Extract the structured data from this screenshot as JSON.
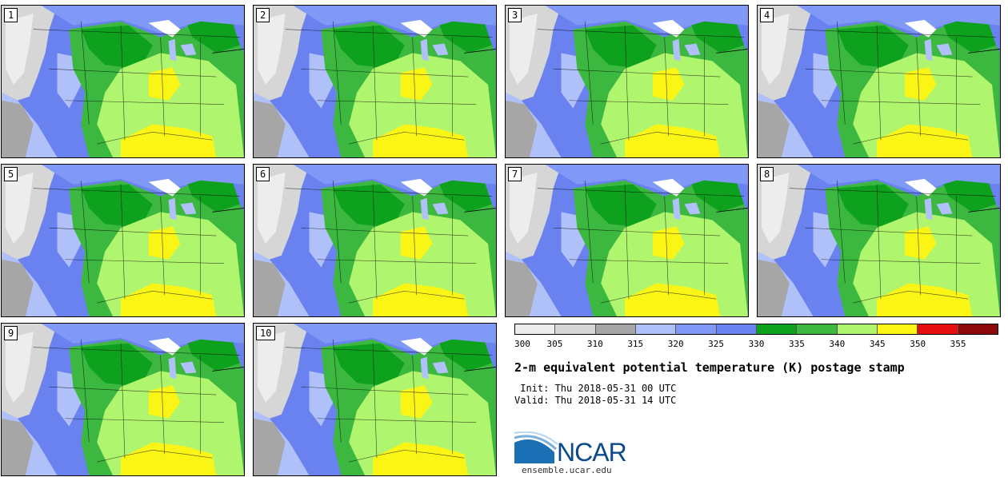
{
  "panels": [
    {
      "label": "1"
    },
    {
      "label": "2"
    },
    {
      "label": "3"
    },
    {
      "label": "4"
    },
    {
      "label": "5"
    },
    {
      "label": "6"
    },
    {
      "label": "7"
    },
    {
      "label": "8"
    },
    {
      "label": "9"
    },
    {
      "label": "10"
    }
  ],
  "colorbar": {
    "colors": [
      "#ededed",
      "#d6d6d6",
      "#a6a6a6",
      "#b0c1fa",
      "#8099f7",
      "#6a82f0",
      "#0da11e",
      "#3cb840",
      "#b0f56e",
      "#fbf515",
      "#e60f0f",
      "#8c0a0a"
    ],
    "ticks": [
      "300",
      "305",
      "310",
      "315",
      "320",
      "325",
      "330",
      "335",
      "340",
      "345",
      "350",
      "355"
    ]
  },
  "title": "2-m equivalent potential temperature (K) postage stamp",
  "init": " Init: Thu 2018-05-31 00 UTC",
  "valid": "Valid: Thu 2018-05-31 14 UTC",
  "logo": {
    "text": "NCAR",
    "site": "ensemble.ucar.edu"
  }
}
